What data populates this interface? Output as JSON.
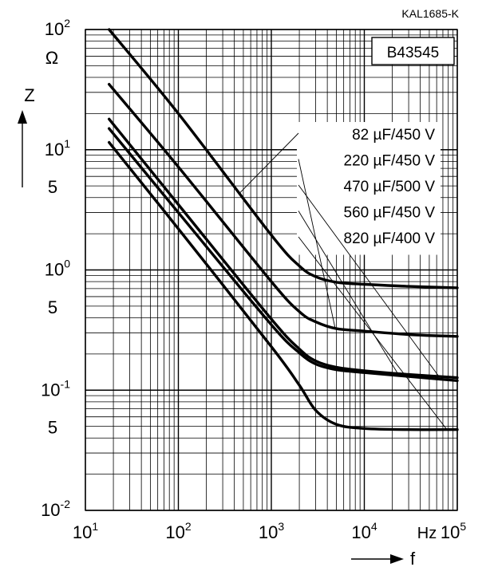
{
  "chart_data": {
    "type": "line",
    "doc_code": "KAL1685-K",
    "series_label": "B43545",
    "y_axis_label": "Z",
    "y_unit": "Ω",
    "x_axis_label": "f",
    "x_unit": "Hz",
    "x_scale": "log",
    "y_scale": "log",
    "xlim": [
      10,
      100000
    ],
    "ylim": [
      0.01,
      100
    ],
    "grid": true,
    "x_ticks": [
      {
        "base": "10",
        "exp": "1"
      },
      {
        "base": "10",
        "exp": "2"
      },
      {
        "base": "10",
        "exp": "3"
      },
      {
        "base": "10",
        "exp": "4"
      },
      {
        "base": "10",
        "exp": "5"
      }
    ],
    "y_ticks": [
      {
        "base": "10",
        "exp": "2"
      },
      {
        "base": "10",
        "exp": "1"
      },
      {
        "base": "10",
        "exp": "0"
      },
      {
        "base": "10",
        "exp": "-1"
      },
      {
        "base": "10",
        "exp": "-2"
      }
    ],
    "y_minor_labels": [
      "5",
      "5",
      "5"
    ],
    "series": [
      {
        "name": "82 µF/450 V",
        "points": [
          [
            18,
            100
          ],
          [
            100,
            20
          ],
          [
            1000,
            1.95
          ],
          [
            2000,
            1.08
          ],
          [
            3000,
            0.88
          ],
          [
            5000,
            0.79
          ],
          [
            10000,
            0.76
          ],
          [
            30000,
            0.73
          ],
          [
            100000,
            0.71
          ]
        ]
      },
      {
        "name": "220 µF/450 V",
        "points": [
          [
            18,
            35
          ],
          [
            100,
            7.2
          ],
          [
            1000,
            0.8
          ],
          [
            2000,
            0.45
          ],
          [
            3000,
            0.37
          ],
          [
            5000,
            0.325
          ],
          [
            10000,
            0.31
          ],
          [
            30000,
            0.29
          ],
          [
            100000,
            0.28
          ]
        ]
      },
      {
        "name": "470 µF/500 V",
        "points": [
          [
            18,
            18
          ],
          [
            100,
            3.5
          ],
          [
            1000,
            0.39
          ],
          [
            2000,
            0.22
          ],
          [
            3000,
            0.175
          ],
          [
            5000,
            0.155
          ],
          [
            10000,
            0.145
          ],
          [
            30000,
            0.135
          ],
          [
            100000,
            0.127
          ]
        ]
      },
      {
        "name": "560 µF/450 V",
        "points": [
          [
            18,
            15
          ],
          [
            100,
            3.0
          ],
          [
            1000,
            0.35
          ],
          [
            2000,
            0.205
          ],
          [
            3000,
            0.165
          ],
          [
            5000,
            0.148
          ],
          [
            10000,
            0.14
          ],
          [
            30000,
            0.13
          ],
          [
            100000,
            0.12
          ]
        ]
      },
      {
        "name": "820 µF/400 V",
        "points": [
          [
            18,
            11.5
          ],
          [
            100,
            2.2
          ],
          [
            1000,
            0.23
          ],
          [
            2000,
            0.11
          ],
          [
            3000,
            0.068
          ],
          [
            5000,
            0.052
          ],
          [
            10000,
            0.048
          ],
          [
            30000,
            0.047
          ],
          [
            100000,
            0.047
          ]
        ]
      }
    ],
    "legend_leader_targets": [
      300,
      420,
      550,
      500,
      560
    ]
  }
}
